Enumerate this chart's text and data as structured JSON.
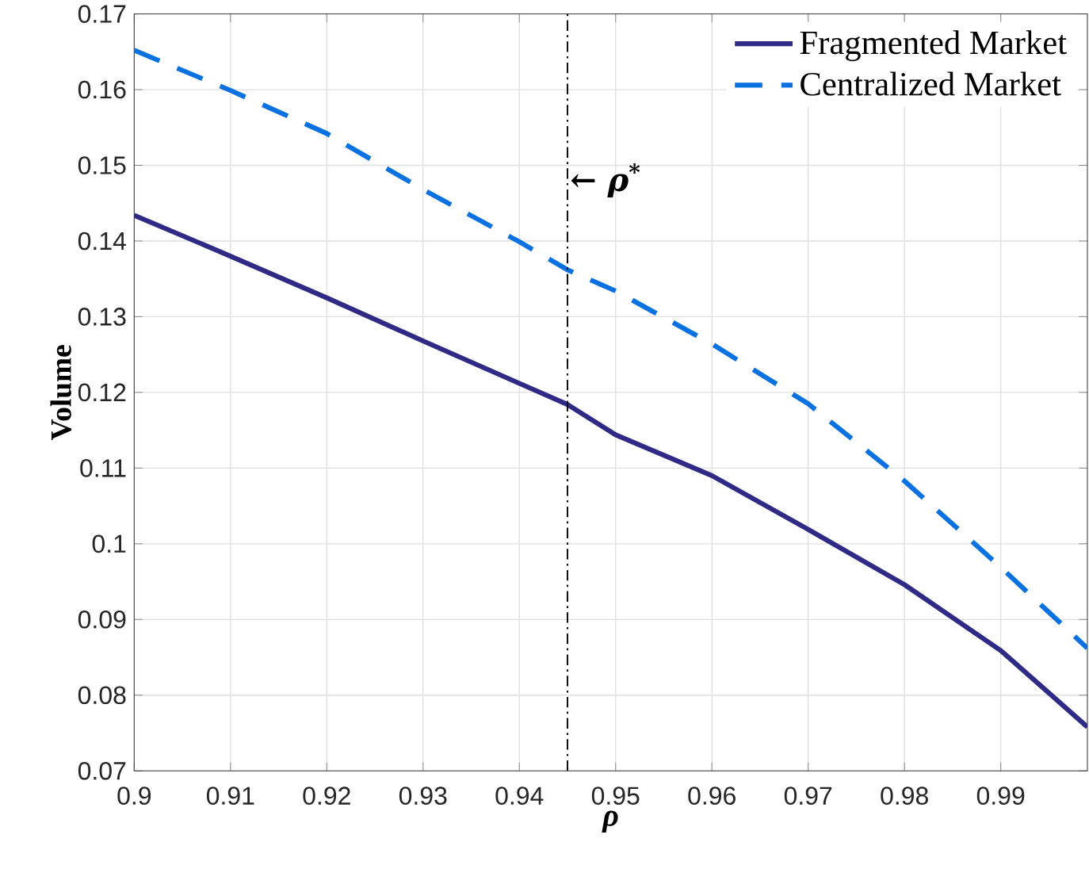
{
  "chart_data": {
    "type": "line",
    "xlabel": "ρ",
    "ylabel": "Volume",
    "x": [
      0.9,
      0.91,
      0.92,
      0.93,
      0.94,
      0.945,
      0.95,
      0.96,
      0.97,
      0.98,
      0.99,
      0.999
    ],
    "series": [
      {
        "name": "Fragmented Market",
        "color": "#2e2a86",
        "line_style": "solid",
        "values": [
          0.1434,
          0.138,
          0.1325,
          0.1268,
          0.1212,
          0.1184,
          0.1144,
          0.109,
          0.1019,
          0.0946,
          0.0859,
          0.0758
        ]
      },
      {
        "name": "Centralized Market",
        "color": "#0a72e0",
        "line_style": "dashed",
        "values": [
          0.1652,
          0.1599,
          0.1542,
          0.1468,
          0.1399,
          0.1362,
          0.1334,
          0.1264,
          0.1185,
          0.1083,
          0.0969,
          0.0862
        ]
      }
    ],
    "xlim": [
      0.9,
      0.999
    ],
    "ylim": [
      0.07,
      0.17
    ],
    "xticks": [
      0.9,
      0.91,
      0.92,
      0.93,
      0.94,
      0.95,
      0.96,
      0.97,
      0.98,
      0.99
    ],
    "yticks": [
      0.07,
      0.08,
      0.09,
      0.1,
      0.11,
      0.12,
      0.13,
      0.14,
      0.15,
      0.16,
      0.17
    ],
    "ref_lines": [
      {
        "axis": "x",
        "value": 0.945,
        "label": "← ρ$^{*}$",
        "color": "#000000",
        "line_style": "dashdot"
      }
    ],
    "grid": true,
    "legend": "top right",
    "marker": "none"
  }
}
